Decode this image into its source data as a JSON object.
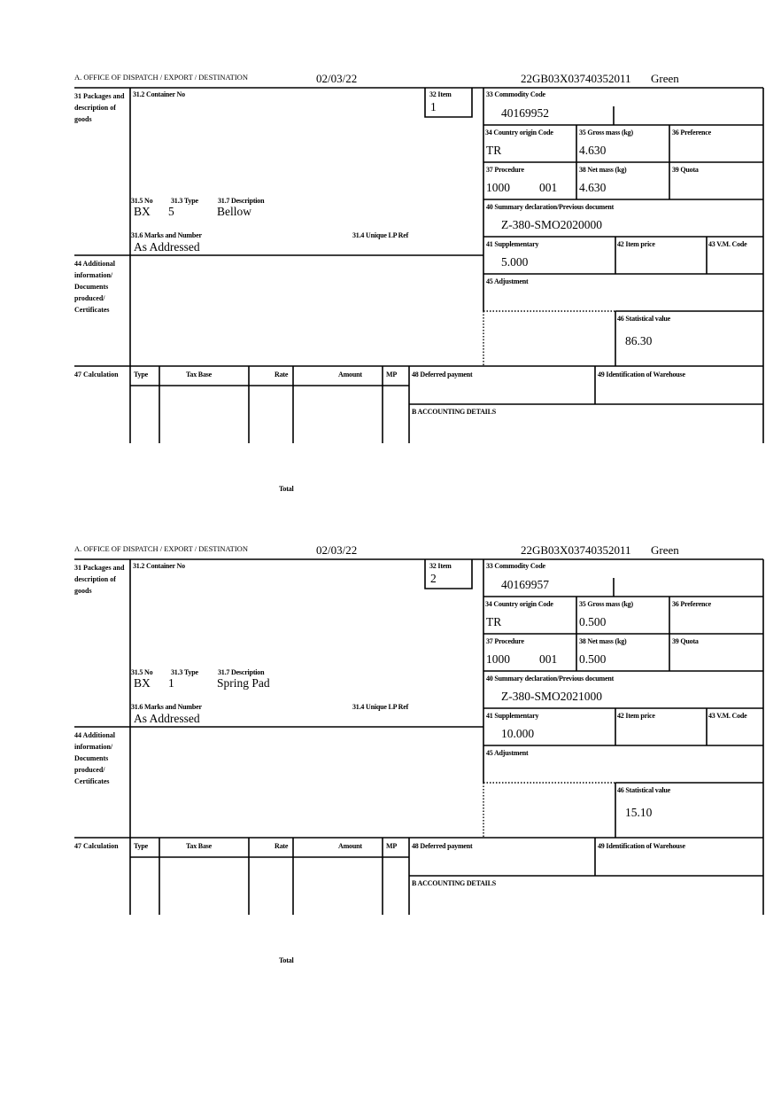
{
  "labels": {
    "office": "A. OFFICE OF DISPATCH / EXPORT / DESTINATION",
    "packages": "31 Packages and description of goods",
    "container": "31.2 Container No",
    "item": "32 Item",
    "commodity": "33 Commodity Code",
    "country": "34 Country origin Code",
    "gross": "35 Gross mass (kg)",
    "preference": "36 Preference",
    "procedure": "37 Procedure",
    "net": "38 Net mass (kg)",
    "quota": "39 Quota",
    "summary": "40 Summary declaration/Previous document",
    "no": "31.5 No",
    "type": "31.3 Type",
    "description": "31.7 Description",
    "marks": "31.6 Marks and Number",
    "unique": "31.4 Unique LP Ref",
    "supplementary": "41 Supplementary",
    "item_price": "42 Item price",
    "vm_code": "43 V.M. Code",
    "additional": "44 Additional information/ Documents produced/ Certificates",
    "adjustment": "45 Adjustment",
    "statistical": "46 Statistical value",
    "calculation": "47 Calculation",
    "calc_type": "Type",
    "tax_base": "Tax Base",
    "rate": "Rate",
    "amount": "Amount",
    "mp": "MP",
    "deferred": "48 Deferred payment",
    "warehouse": "49 Identification of Warehouse",
    "accounting": "B ACCOUNTING DETAILS",
    "total": "Total"
  },
  "items": [
    {
      "date": "02/03/22",
      "reference": "22GB03X03740352011",
      "route": "Green",
      "item_no": "1",
      "commodity_code": "40169952",
      "country": "TR",
      "gross_mass": "4.630",
      "procedure_a": "1000",
      "procedure_b": "001",
      "net_mass": "4.630",
      "summary_doc": "Z-380-SMO2020000",
      "pkg_no": "BX",
      "pkg_type": "5",
      "description": "Bellow",
      "marks": "As Addressed",
      "supplementary": "5.000",
      "statistical_value": "86.30"
    },
    {
      "date": "02/03/22",
      "reference": "22GB03X03740352011",
      "route": "Green",
      "item_no": "2",
      "commodity_code": "40169957",
      "country": "TR",
      "gross_mass": "0.500",
      "procedure_a": "1000",
      "procedure_b": "001",
      "net_mass": "0.500",
      "summary_doc": "Z-380-SMO2021000",
      "pkg_no": "BX",
      "pkg_type": "1",
      "description": "Spring Pad",
      "marks": "As Addressed",
      "supplementary": "10.000",
      "statistical_value": "15.10"
    }
  ]
}
